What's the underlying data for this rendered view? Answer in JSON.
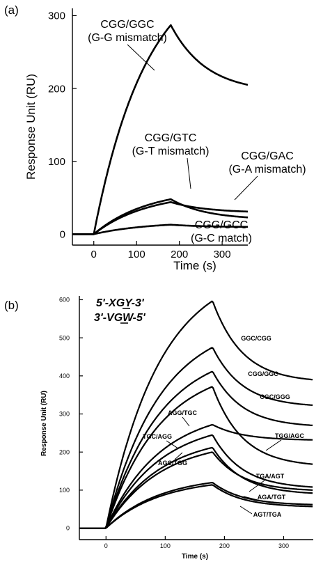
{
  "chart_data": [
    {
      "panel": "(a)",
      "type": "line",
      "xlabel": "Time (s)",
      "ylabel": "Response Unit (RU)",
      "xlim": [
        -50,
        360
      ],
      "ylim": [
        -15,
        310
      ],
      "x_ticks": [
        0,
        100,
        200,
        300
      ],
      "y_ticks": [
        0,
        100,
        200,
        300
      ],
      "grid": false,
      "legend": "none",
      "series": [
        {
          "name_lines": [
            "CGG/GGC",
            "(G-G mismatch)"
          ],
          "association_end": 287,
          "dissociation_end": 205
        },
        {
          "name_lines": [
            "CGG/GTC",
            "(G-T mismatch)"
          ],
          "association_end": 48,
          "dissociation_end": 23
        },
        {
          "name_lines": [
            "CGG/GAC",
            "(G-A mismatch)"
          ],
          "association_end": 44,
          "dissociation_end": 31
        },
        {
          "name_lines": [
            "CGG/GCC",
            "(G-C match)"
          ],
          "association_end": 13,
          "dissociation_end": 10
        }
      ]
    },
    {
      "panel": "(b)",
      "type": "line",
      "xlabel": "Time (s)",
      "ylabel": "Response Unit (RU)",
      "xlim": [
        -45,
        350
      ],
      "ylim": [
        -30,
        610
      ],
      "x_ticks": [
        0,
        100,
        200,
        300
      ],
      "y_ticks": [
        0,
        100,
        200,
        300,
        400,
        500,
        600
      ],
      "grid": false,
      "legend": "none",
      "annotation_lines": [
        "5'-XGY-3'",
        "3'-VGW-5'"
      ],
      "series": [
        {
          "name": "GGC/CGG",
          "association_end": 597,
          "dissociation_end": 390
        },
        {
          "name": "CGG/GGC",
          "association_end": 475,
          "dissociation_end": 323
        },
        {
          "name": "CGC/GGG",
          "association_end": 412,
          "dissociation_end": 270
        },
        {
          "name": "AGG/TGC",
          "association_end": 272,
          "dissociation_end": 232
        },
        {
          "name": "TGG/AGC",
          "association_end": 372,
          "dissociation_end": 168
        },
        {
          "name": "TGC/AGG",
          "association_end": 245,
          "dissociation_end": 108
        },
        {
          "name": "AGC/TGG",
          "association_end": 212,
          "dissociation_end": 92
        },
        {
          "name": "TGA/AGT",
          "association_end": 200,
          "dissociation_end": 100
        },
        {
          "name": "AGA/TGT",
          "association_end": 120,
          "dissociation_end": 62
        },
        {
          "name": "AGT/TGA",
          "association_end": 114,
          "dissociation_end": 57
        }
      ]
    }
  ]
}
